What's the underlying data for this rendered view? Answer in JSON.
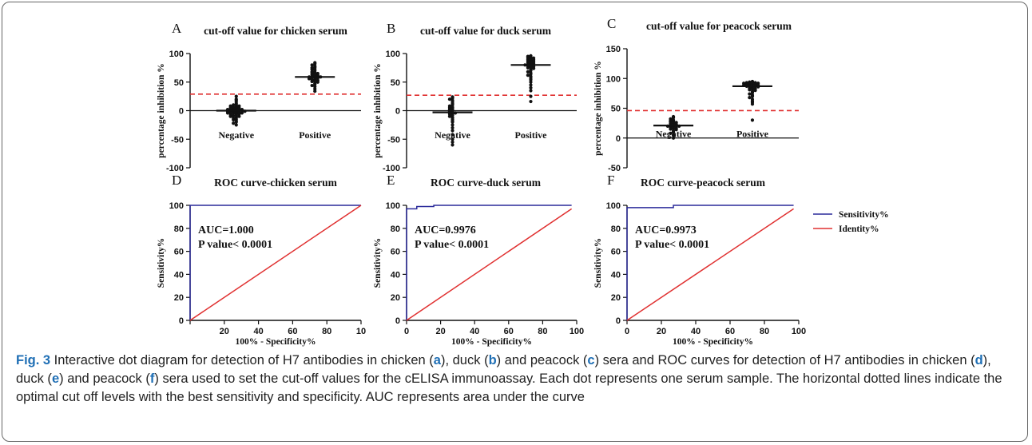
{
  "colors": {
    "cutoff": "#e03030",
    "sensitivity": "#2a2a9a",
    "identity": "#e03030",
    "dots": "#111111"
  },
  "chart_data": [
    {
      "type": "scatter",
      "panel": "A",
      "title": "cut-off value for chicken serum",
      "xlabel": "",
      "ylabel": "percentage inhibition %",
      "ylim": [
        -100,
        100
      ],
      "yticks": [
        -100,
        -50,
        0,
        50,
        100
      ],
      "categories": [
        "Negative",
        "Positive"
      ],
      "medians": [
        0,
        59
      ],
      "cutoff": 29,
      "groups": [
        {
          "name": "Negative",
          "values": [
            25,
            20,
            18,
            15,
            12,
            10,
            10,
            8,
            8,
            7,
            6,
            5,
            5,
            4,
            4,
            3,
            3,
            2,
            2,
            1,
            1,
            0,
            0,
            0,
            -1,
            -1,
            -2,
            -2,
            -3,
            -3,
            -4,
            -4,
            -5,
            -5,
            -6,
            -7,
            -8,
            -9,
            -10,
            -10,
            -12,
            -13,
            -15,
            -16,
            -18,
            -20,
            -22,
            -25
          ]
        },
        {
          "name": "Positive",
          "values": [
            84,
            82,
            80,
            78,
            76,
            75,
            73,
            72,
            70,
            68,
            67,
            66,
            65,
            64,
            63,
            62,
            61,
            60,
            60,
            59,
            59,
            58,
            58,
            57,
            56,
            55,
            54,
            53,
            52,
            51,
            50,
            48,
            46,
            44,
            42,
            38,
            34
          ]
        }
      ]
    },
    {
      "type": "scatter",
      "panel": "B",
      "title": "cut-off value for duck serum",
      "xlabel": "",
      "ylabel": "percentage inhibition %",
      "ylim": [
        -100,
        100
      ],
      "yticks": [
        -100,
        -50,
        0,
        50,
        100
      ],
      "categories": [
        "Negative",
        "Positive"
      ],
      "medians": [
        -3,
        80
      ],
      "cutoff": 27,
      "groups": [
        {
          "name": "Negative",
          "values": [
            24,
            22,
            20,
            18,
            15,
            12,
            10,
            8,
            6,
            5,
            3,
            2,
            0,
            -1,
            -2,
            -3,
            -4,
            -5,
            -6,
            -8,
            -10,
            -12,
            -15,
            -18,
            -20,
            -25,
            -30,
            -35,
            -42,
            -50,
            -55,
            -60
          ]
        },
        {
          "name": "Positive",
          "values": [
            96,
            95,
            94,
            93,
            92,
            91,
            90,
            89,
            88,
            87,
            86,
            85,
            84,
            83,
            82,
            81,
            80,
            80,
            79,
            78,
            77,
            76,
            75,
            74,
            72,
            70,
            68,
            66,
            64,
            62,
            60,
            57,
            54,
            50,
            45,
            40,
            35,
            25,
            16
          ]
        }
      ]
    },
    {
      "type": "scatter",
      "panel": "C",
      "title": "cut-off value for peacock serum",
      "xlabel": "",
      "ylabel": "percentage inhibition %",
      "ylim": [
        -50,
        150
      ],
      "yticks": [
        -50,
        0,
        50,
        100,
        150
      ],
      "categories": [
        "Negative",
        "Positive"
      ],
      "medians": [
        21,
        87
      ],
      "cutoff": 46,
      "groups": [
        {
          "name": "Negative",
          "values": [
            36,
            34,
            32,
            30,
            29,
            28,
            27,
            26,
            25,
            24,
            23,
            22,
            21,
            21,
            20,
            20,
            19,
            18,
            17,
            16,
            15,
            14,
            12,
            10,
            8,
            5,
            0
          ]
        },
        {
          "name": "Positive",
          "values": [
            95,
            94,
            94,
            93,
            93,
            92,
            92,
            91,
            91,
            90,
            90,
            89,
            89,
            88,
            88,
            87,
            87,
            86,
            85,
            84,
            83,
            82,
            81,
            80,
            78,
            76,
            74,
            72,
            70,
            68,
            65,
            62,
            60,
            57,
            30
          ]
        }
      ]
    },
    {
      "type": "line",
      "panel": "D",
      "title": "ROC curve-chicken serum",
      "xlabel": "100% - Specificity%",
      "ylabel": "Sensitivity%",
      "xlim": [
        0,
        100
      ],
      "ylim": [
        0,
        100
      ],
      "xticks": [
        "",
        "20",
        "40",
        "60",
        "80",
        "10"
      ],
      "yticks": [
        0,
        20,
        40,
        60,
        80,
        100
      ],
      "annotation": [
        "AUC=1.000",
        "P value< 0.0001"
      ],
      "series": [
        {
          "name": "Sensitivity%",
          "x": [
            0,
            0,
            100
          ],
          "y": [
            0,
            100,
            100
          ]
        },
        {
          "name": "Identity%",
          "x": [
            0,
            100
          ],
          "y": [
            0,
            100
          ]
        }
      ]
    },
    {
      "type": "line",
      "panel": "E",
      "title": "ROC curve-duck serum",
      "xlabel": "100% - Specificity%",
      "ylabel": "Sensitivity%",
      "xlim": [
        0,
        100
      ],
      "ylim": [
        0,
        100
      ],
      "xticks": [
        "0",
        "20",
        "40",
        "60",
        "80",
        "100"
      ],
      "yticks": [
        0,
        20,
        40,
        60,
        80,
        100
      ],
      "annotation": [
        "AUC=0.9976",
        "P value< 0.0001"
      ],
      "series": [
        {
          "name": "Sensitivity%",
          "x": [
            0,
            0,
            6,
            6,
            16,
            16,
            97
          ],
          "y": [
            0,
            97,
            97,
            99,
            99,
            100,
            100
          ]
        },
        {
          "name": "Identity%",
          "x": [
            0,
            97
          ],
          "y": [
            0,
            97
          ]
        }
      ]
    },
    {
      "type": "line",
      "panel": "F",
      "title": "ROC curve-peacock serum",
      "xlabel": "100% - Specificity%",
      "ylabel": "Sensitivity%",
      "xlim": [
        0,
        100
      ],
      "ylim": [
        0,
        100
      ],
      "xticks": [
        "0",
        "20",
        "40",
        "60",
        "80",
        "100"
      ],
      "yticks": [
        0,
        20,
        40,
        60,
        80,
        100
      ],
      "annotation": [
        "AUC=0.9973",
        "P value< 0.0001"
      ],
      "legend": [
        "Sensitivity%",
        "Identity%"
      ],
      "series": [
        {
          "name": "Sensitivity%",
          "x": [
            0,
            0,
            27,
            27,
            97
          ],
          "y": [
            0,
            98,
            98,
            100,
            100
          ]
        },
        {
          "name": "Identity%",
          "x": [
            0,
            97
          ],
          "y": [
            0,
            97
          ]
        }
      ]
    }
  ],
  "caption": {
    "lead": "Fig. 3",
    "parts": [
      " Interactive dot diagram for detection of H7 antibodies in chicken (",
      "a",
      "), duck (",
      "b",
      ") and peacock (",
      "c",
      ") sera and ROC curves for detection of H7 antibodies in chicken (",
      "d",
      "), duck (",
      "e",
      ") and peacock (",
      "f",
      ") sera used to set the cut-off values for the cELISA immunoassay. Each dot represents one serum sample. The horizontal dotted lines indicate the optimal cut off levels with the best sensitivity and specificity. AUC represents area under the curve"
    ]
  }
}
